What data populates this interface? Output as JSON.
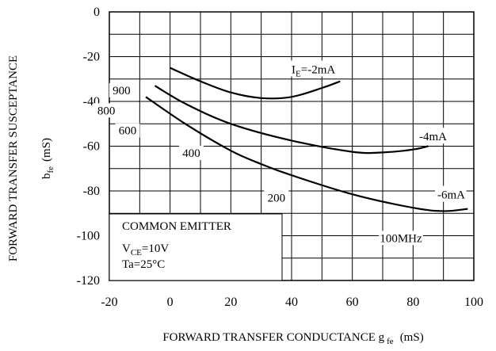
{
  "chart_data": {
    "type": "line",
    "ylabel_main": "FORWARD TRANSFER SUSCEPTANCE",
    "ylabel_sym": "b",
    "ylabel_sub": "fe",
    "ylabel_unit": "(mS)",
    "xlabel_main": "FORWARD TRANSFER CONDUCTANCE g",
    "xlabel_sub": "fe",
    "xlabel_unit": "(mS)",
    "xlim": [
      -20,
      100
    ],
    "ylim": [
      -120,
      0
    ],
    "grid": true,
    "x_ticks": [
      {
        "v": -20,
        "label": "-20"
      },
      {
        "v": 0,
        "label": "0"
      },
      {
        "v": 20,
        "label": "20"
      },
      {
        "v": 40,
        "label": "40"
      },
      {
        "v": 60,
        "label": "60"
      },
      {
        "v": 80,
        "label": "80"
      },
      {
        "v": 100,
        "label": "100"
      }
    ],
    "y_ticks": [
      {
        "v": 0,
        "label": "0"
      },
      {
        "v": -20,
        "label": "-20"
      },
      {
        "v": -40,
        "label": "-40"
      },
      {
        "v": -60,
        "label": "-60"
      },
      {
        "v": -80,
        "label": "-80"
      },
      {
        "v": -100,
        "label": "-100"
      },
      {
        "v": -120,
        "label": "-120"
      }
    ],
    "series": [
      {
        "points": [
          [
            0,
            -25
          ],
          [
            10,
            -31
          ],
          [
            20,
            -36
          ],
          [
            30,
            -38.5
          ],
          [
            40,
            -38
          ],
          [
            50,
            -34
          ],
          [
            56,
            -31
          ]
        ]
      },
      {
        "points": [
          [
            -5,
            -33
          ],
          [
            5,
            -41
          ],
          [
            20,
            -50
          ],
          [
            40,
            -57.5
          ],
          [
            60,
            -62.5
          ],
          [
            70,
            -62.8
          ],
          [
            80,
            -61.5
          ],
          [
            85,
            -60
          ]
        ]
      },
      {
        "points": [
          [
            -8,
            -38
          ],
          [
            5,
            -50
          ],
          [
            20,
            -62
          ],
          [
            30,
            -68
          ],
          [
            40,
            -73
          ],
          [
            60,
            -81.5
          ],
          [
            80,
            -87.5
          ],
          [
            90,
            -89
          ],
          [
            98,
            -88
          ]
        ]
      }
    ],
    "curve_labels": [
      {
        "pre": "I",
        "sub": "E",
        "post": "=-2mA",
        "x": 40,
        "y": -26
      },
      {
        "pre": "",
        "sub": "",
        "post": "-4mA",
        "x": 82,
        "y": -56
      },
      {
        "pre": "",
        "sub": "",
        "post": "-6mA",
        "x": 88,
        "y": -82
      }
    ],
    "freq_labels": [
      {
        "text": "900",
        "x": -16,
        "y": -35
      },
      {
        "text": "800",
        "x": -21,
        "y": -44
      },
      {
        "text": "600",
        "x": -14,
        "y": -53
      },
      {
        "text": "400",
        "x": 7,
        "y": -63
      },
      {
        "text": "200",
        "x": 35,
        "y": -83
      },
      {
        "text": "100MHz",
        "x": 76,
        "y": -101
      }
    ],
    "conditions": {
      "line1": "COMMON EMITTER",
      "line2_pre": "V",
      "line2_sub": "CE",
      "line2_post": "=10V",
      "line3": "Ta=25°C"
    }
  }
}
